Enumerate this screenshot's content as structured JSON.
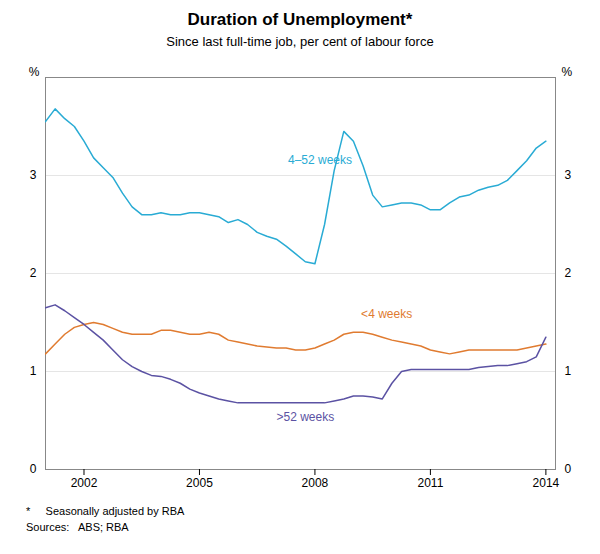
{
  "chart_data": {
    "type": "line",
    "title": "Duration of Unemployment*",
    "subtitle": "Since last full-time job, per cent of labour force",
    "ylabel": "%",
    "y2label": "%",
    "footnotes": [
      "*     Seasonally adjusted by RBA",
      "Sources:   ABS; RBA"
    ],
    "xlim": [
      2001.0,
      2014.25
    ],
    "xticks": [
      2002,
      2005,
      2008,
      2011,
      2014
    ],
    "ylim": [
      0,
      4
    ],
    "yticks": [
      0,
      1,
      2,
      3
    ],
    "y2lim": [
      0,
      4
    ],
    "y2ticks": [
      0,
      1,
      2,
      3
    ],
    "grid": true,
    "x": [
      2001.0,
      2001.25,
      2001.5,
      2001.75,
      2002.0,
      2002.25,
      2002.5,
      2002.75,
      2003.0,
      2003.25,
      2003.5,
      2003.75,
      2004.0,
      2004.25,
      2004.5,
      2004.75,
      2005.0,
      2005.25,
      2005.5,
      2005.75,
      2006.0,
      2006.25,
      2006.5,
      2006.75,
      2007.0,
      2007.25,
      2007.5,
      2007.75,
      2008.0,
      2008.25,
      2008.5,
      2008.75,
      2009.0,
      2009.25,
      2009.5,
      2009.75,
      2010.0,
      2010.25,
      2010.5,
      2010.75,
      2011.0,
      2011.25,
      2011.5,
      2011.75,
      2012.0,
      2012.25,
      2012.5,
      2012.75,
      2013.0,
      2013.25,
      2013.5,
      2013.75,
      2014.0
    ],
    "series": [
      {
        "name": "4–52 weeks",
        "color": "#29ABD4",
        "values": [
          3.55,
          3.68,
          3.58,
          3.5,
          3.35,
          3.18,
          3.08,
          2.98,
          2.82,
          2.68,
          2.6,
          2.6,
          2.62,
          2.6,
          2.6,
          2.62,
          2.62,
          2.6,
          2.58,
          2.52,
          2.55,
          2.5,
          2.42,
          2.38,
          2.35,
          2.28,
          2.2,
          2.12,
          2.1,
          2.5,
          3.05,
          3.45,
          3.35,
          3.1,
          2.8,
          2.68,
          2.7,
          2.72,
          2.72,
          2.7,
          2.65,
          2.65,
          2.72,
          2.78,
          2.8,
          2.85,
          2.88,
          2.9,
          2.95,
          3.05,
          3.15,
          3.28,
          3.35
        ]
      },
      {
        "name": "<4 weeks",
        "color": "#E07B30",
        "values": [
          1.18,
          1.28,
          1.38,
          1.45,
          1.48,
          1.5,
          1.48,
          1.44,
          1.4,
          1.38,
          1.38,
          1.38,
          1.42,
          1.42,
          1.4,
          1.38,
          1.38,
          1.4,
          1.38,
          1.32,
          1.3,
          1.28,
          1.26,
          1.25,
          1.24,
          1.24,
          1.22,
          1.22,
          1.24,
          1.28,
          1.32,
          1.38,
          1.4,
          1.4,
          1.38,
          1.35,
          1.32,
          1.3,
          1.28,
          1.26,
          1.22,
          1.2,
          1.18,
          1.2,
          1.22,
          1.22,
          1.22,
          1.22,
          1.22,
          1.22,
          1.24,
          1.26,
          1.28
        ]
      },
      {
        "name": ">52 weeks",
        "color": "#5B52A3",
        "values": [
          1.65,
          1.68,
          1.62,
          1.55,
          1.48,
          1.4,
          1.32,
          1.22,
          1.12,
          1.05,
          1.0,
          0.96,
          0.95,
          0.92,
          0.88,
          0.82,
          0.78,
          0.75,
          0.72,
          0.7,
          0.68,
          0.68,
          0.68,
          0.68,
          0.68,
          0.68,
          0.68,
          0.68,
          0.68,
          0.68,
          0.7,
          0.72,
          0.75,
          0.75,
          0.74,
          0.72,
          0.88,
          1.0,
          1.02,
          1.02,
          1.02,
          1.02,
          1.02,
          1.02,
          1.02,
          1.04,
          1.05,
          1.06,
          1.06,
          1.08,
          1.1,
          1.15,
          1.35
        ]
      }
    ],
    "annotations": [
      {
        "text": "4–52 weeks",
        "x": 2007.3,
        "y": 3.12,
        "color": "#29ABD4"
      },
      {
        "text": "<4 weeks",
        "x": 2009.2,
        "y": 1.55,
        "color": "#E07B30"
      },
      {
        "text": ">52 weeks",
        "x": 2007.0,
        "y": 0.5,
        "color": "#5B52A3"
      }
    ]
  }
}
